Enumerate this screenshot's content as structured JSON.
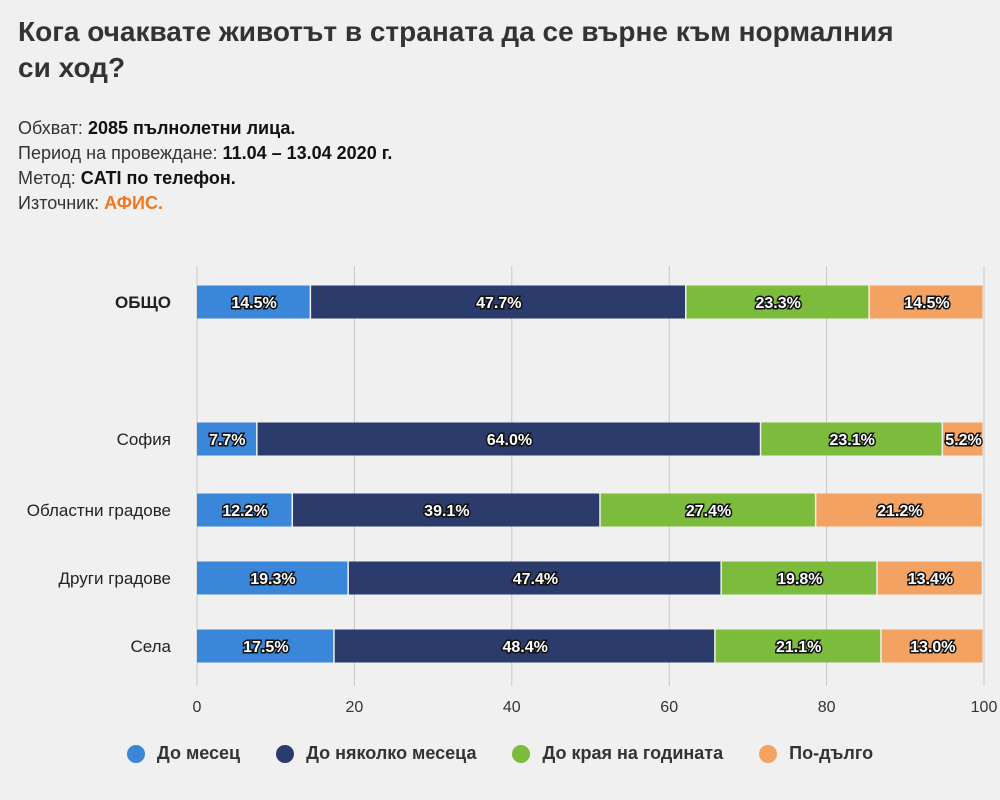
{
  "header": {
    "title": "Кога очаквате животът в страната да се върне към нормалния си ход?",
    "meta": [
      {
        "label": "Обхват:",
        "value": "2085 пълнолетни лица."
      },
      {
        "label": "Период на провеждане:",
        "value": "11.04 – 13.04 2020 г."
      },
      {
        "label": "Метод:",
        "value": "CATI по телефон."
      },
      {
        "label": "Източник:",
        "value": "АФИС."
      }
    ]
  },
  "colors": {
    "accent": "#f0781e",
    "grid": "#c8c8c8",
    "background": "#f0f0f0"
  },
  "chart_data": {
    "type": "bar",
    "orientation": "horizontal",
    "stacked": true,
    "categories": [
      "ОБЩО",
      "София",
      "Областни градове",
      "Други градове",
      "Села"
    ],
    "series": [
      {
        "name": "До месец",
        "color": "#3a86d9",
        "values": [
          14.5,
          7.7,
          12.2,
          19.3,
          17.5
        ]
      },
      {
        "name": "До няколко месеца",
        "color": "#2b3b6b",
        "values": [
          47.7,
          64.0,
          39.1,
          47.4,
          48.4
        ]
      },
      {
        "name": "До края на годината",
        "color": "#7dbb3c",
        "values": [
          23.3,
          23.1,
          27.4,
          19.8,
          21.1
        ]
      },
      {
        "name": "По-дълго",
        "color": "#f3a262",
        "values": [
          14.5,
          5.2,
          21.2,
          13.4,
          13.0
        ]
      }
    ],
    "data_labels": [
      [
        "14.5%",
        "47.7%",
        "23.3%",
        "14.5%"
      ],
      [
        "7.7%",
        "64.0%",
        "23.1%",
        "5.2%"
      ],
      [
        "12.2%",
        "39.1%",
        "27.4%",
        "21.2%"
      ],
      [
        "19.3%",
        "47.4%",
        "19.8%",
        "13.4%"
      ],
      [
        "17.5%",
        "48.4%",
        "21.1%",
        "13.0%"
      ]
    ],
    "xticks": [
      "0",
      "20",
      "40",
      "60",
      "80",
      "100"
    ],
    "xlim": [
      0,
      100
    ],
    "grid": true,
    "legend": "bottom"
  }
}
